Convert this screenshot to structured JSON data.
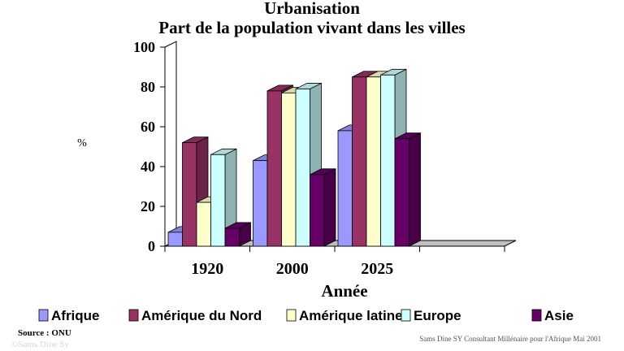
{
  "chart_data": {
    "type": "bar",
    "title": "Urbanisation",
    "subtitle": "Part de la population vivant dans les villes",
    "xlabel": "Année",
    "ylabel": "%",
    "ylim": [
      0,
      100
    ],
    "yticks": [
      0,
      20,
      40,
      60,
      80,
      100
    ],
    "categories": [
      "1920",
      "2000",
      "2025",
      ""
    ],
    "series": [
      {
        "name": "Afrique",
        "color": "#9999ff",
        "values": [
          7,
          43,
          58,
          null
        ]
      },
      {
        "name": "Amérique du Nord",
        "color": "#993366",
        "values": [
          52,
          78,
          85,
          null
        ]
      },
      {
        "name": "Amérique latine",
        "color": "#ffffcc",
        "values": [
          22,
          77,
          85,
          null
        ]
      },
      {
        "name": "Europe",
        "color": "#ccffff",
        "values": [
          46,
          79,
          86,
          null
        ]
      },
      {
        "name": "Asie",
        "color": "#660066",
        "values": [
          9,
          36,
          54,
          null
        ]
      }
    ],
    "legend_position": "bottom",
    "grid": false,
    "style": "3d-bars"
  },
  "source": "Source : ONU",
  "credit": "Sams Dine SY Consultant   Millénaire  pour l'Afrique   Mai 2001",
  "watermark": "©Sams Dine Sy"
}
